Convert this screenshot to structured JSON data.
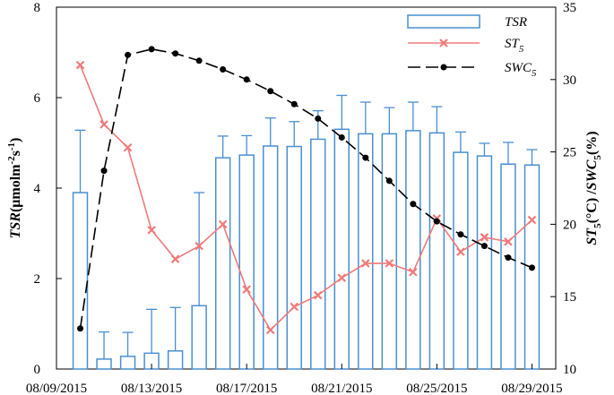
{
  "chart_data": {
    "type": "bar+line",
    "x_tick_labels": [
      "08/09/2015",
      "08/13/2015",
      "08/17/2015",
      "08/21/2015",
      "08/25/2015",
      "08/29/2015"
    ],
    "x_tick_dates": [
      "2015-08-09",
      "2015-08-13",
      "2015-08-17",
      "2015-08-21",
      "2015-08-25",
      "2015-08-29"
    ],
    "x_range": [
      "2015-08-09",
      "2015-08-30"
    ],
    "y_left": {
      "label_main": "TSR",
      "label_unit": "(μmolm",
      "label_sup1": "-2",
      "label_mid": "s",
      "label_sup2": "-1",
      "label_close": ")",
      "range": [
        0,
        8
      ],
      "ticks": [
        0,
        2,
        4,
        6,
        8
      ]
    },
    "y_right": {
      "label_st": "ST",
      "label_sub1": "5",
      "label_mid": "(°C) /",
      "label_swc": "SWC",
      "label_sub2": "5",
      "label_pct": "(%)",
      "range": [
        10,
        35
      ],
      "ticks": [
        10,
        15,
        20,
        25,
        30,
        35
      ]
    },
    "legend": {
      "position": "top-right",
      "items": [
        {
          "name": "TSR",
          "sub": "",
          "style": "bar"
        },
        {
          "name": "ST",
          "sub": "5",
          "style": "line-x"
        },
        {
          "name": "SWC",
          "sub": "5",
          "style": "dashed-dot"
        }
      ]
    },
    "series": [
      {
        "name": "TSR",
        "axis": "left",
        "color": "#4a8fd0",
        "x": [
          "2015-08-10",
          "2015-08-11",
          "2015-08-12",
          "2015-08-13",
          "2015-08-14",
          "2015-08-15",
          "2015-08-16",
          "2015-08-17",
          "2015-08-18",
          "2015-08-19",
          "2015-08-20",
          "2015-08-21",
          "2015-08-22",
          "2015-08-23",
          "2015-08-24",
          "2015-08-25",
          "2015-08-26",
          "2015-08-27",
          "2015-08-28",
          "2015-08-29"
        ],
        "values": [
          3.9,
          0.22,
          0.28,
          0.35,
          0.4,
          1.4,
          4.67,
          4.73,
          4.93,
          4.92,
          5.08,
          5.3,
          5.2,
          5.2,
          5.27,
          5.22,
          4.79,
          4.71,
          4.53,
          4.51
        ],
        "error": [
          1.38,
          0.6,
          0.53,
          0.97,
          0.96,
          2.5,
          0.48,
          0.43,
          0.62,
          0.55,
          0.63,
          0.75,
          0.7,
          0.58,
          0.63,
          0.58,
          0.45,
          0.28,
          0.48,
          0.34
        ]
      },
      {
        "name": "ST5",
        "axis": "right",
        "color": "#f07a7a",
        "x": [
          "2015-08-10",
          "2015-08-11",
          "2015-08-12",
          "2015-08-13",
          "2015-08-14",
          "2015-08-15",
          "2015-08-16",
          "2015-08-17",
          "2015-08-18",
          "2015-08-19",
          "2015-08-20",
          "2015-08-21",
          "2015-08-22",
          "2015-08-23",
          "2015-08-24",
          "2015-08-25",
          "2015-08-26",
          "2015-08-27",
          "2015-08-28",
          "2015-08-29"
        ],
        "values": [
          31.0,
          26.9,
          25.3,
          19.6,
          17.6,
          18.5,
          20.0,
          15.5,
          12.7,
          14.3,
          15.1,
          16.3,
          17.3,
          17.3,
          16.7,
          20.4,
          18.1,
          19.1,
          18.8,
          20.3
        ]
      },
      {
        "name": "SWC5",
        "axis": "right",
        "color": "#000000",
        "x": [
          "2015-08-10",
          "2015-08-11",
          "2015-08-12",
          "2015-08-13",
          "2015-08-14",
          "2015-08-15",
          "2015-08-16",
          "2015-08-17",
          "2015-08-18",
          "2015-08-19",
          "2015-08-20",
          "2015-08-21",
          "2015-08-22",
          "2015-08-23",
          "2015-08-24",
          "2015-08-25",
          "2015-08-26",
          "2015-08-27",
          "2015-08-28",
          "2015-08-29"
        ],
        "values": [
          12.8,
          23.7,
          31.7,
          32.1,
          31.8,
          31.3,
          30.7,
          30.0,
          29.2,
          28.3,
          27.3,
          26.0,
          24.6,
          23.0,
          21.4,
          20.2,
          19.3,
          18.5,
          17.7,
          17.0
        ]
      }
    ]
  }
}
